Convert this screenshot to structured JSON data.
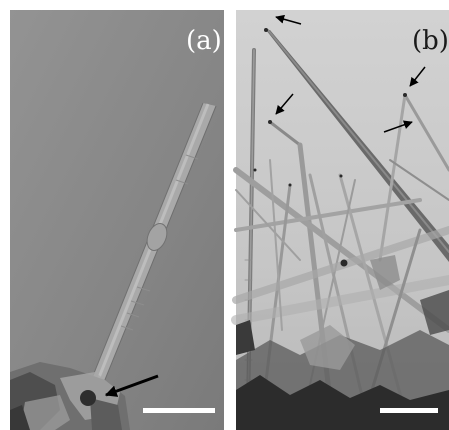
{
  "figure": {
    "panel_a_label": "(a)",
    "panel_b_label": "(b)",
    "colors": {
      "panel_a_background": "#8a8a8a",
      "panel_b_background": "#c8c8c8",
      "scale_bar": "#ffffff",
      "arrow": "#000000"
    },
    "icons": [
      "arrow-icon",
      "scale-bar"
    ]
  }
}
